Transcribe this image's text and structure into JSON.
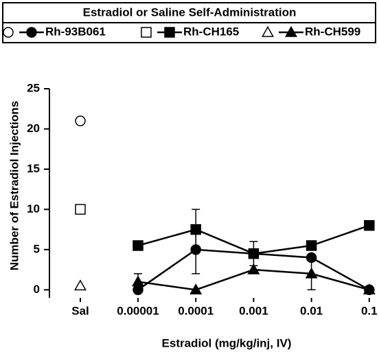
{
  "chart_data": {
    "type": "line",
    "legend_title": "Estradiol or Saline Self-Administration",
    "x_label": "Estradiol  (mg/kg/inj, IV)",
    "y_label": "Number of Estradiol Injections",
    "saline_category": "Sal",
    "categories": [
      "0.00001",
      "0.0001",
      "0.001",
      "0.01",
      "0.1"
    ],
    "series": [
      {
        "name": "Rh-93B061",
        "marker": "circle",
        "color": "#000000",
        "saline": 21,
        "values": [
          0,
          5,
          4.5,
          4,
          0
        ],
        "errors": [
          null,
          3,
          null,
          null,
          null
        ]
      },
      {
        "name": "Rh-CH165",
        "marker": "square",
        "color": "#000000",
        "saline": 10,
        "values": [
          5.5,
          7.5,
          4.5,
          5.5,
          8
        ],
        "errors": [
          null,
          2.5,
          1.5,
          null,
          null
        ]
      },
      {
        "name": "Rh-CH599",
        "marker": "triangle",
        "color": "#000000",
        "saline": 0.5,
        "values": [
          1,
          0,
          2.5,
          2,
          0
        ],
        "errors": [
          1,
          null,
          null,
          2,
          null
        ]
      }
    ],
    "ylim": [
      -1,
      25
    ],
    "yticks": [
      0,
      5,
      10,
      15,
      20,
      25
    ]
  }
}
